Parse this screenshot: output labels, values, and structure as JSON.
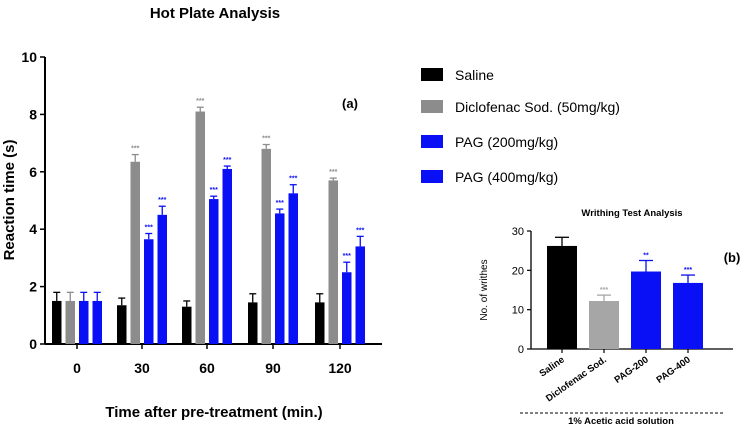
{
  "chart_data": [
    {
      "id": "a",
      "type": "bar",
      "title": "Hot Plate Analysis",
      "panel_label": "(a)",
      "xlabel": "Time after pre-treatment (min.)",
      "ylabel": "Reaction time (s)",
      "ylim": [
        0,
        10
      ],
      "yticks": [
        "0",
        "2",
        "4",
        "6",
        "8",
        "10"
      ],
      "categories": [
        "0",
        "30",
        "60",
        "90",
        "120"
      ],
      "series": [
        {
          "name": "Saline",
          "color": "#000000",
          "values": [
            1.5,
            1.35,
            1.3,
            1.45,
            1.45
          ],
          "errors": [
            0.3,
            0.25,
            0.2,
            0.3,
            0.3
          ],
          "sig": [
            "",
            "",
            "",
            "",
            ""
          ]
        },
        {
          "name": "Diclofenac Sod. (50mg/kg)",
          "color": "#8c8c8c",
          "values": [
            1.5,
            6.35,
            8.1,
            6.8,
            5.7
          ],
          "errors": [
            0.3,
            0.25,
            0.15,
            0.15,
            0.08
          ],
          "sig": [
            "",
            "***",
            "***",
            "***",
            "***"
          ]
        },
        {
          "name": "PAG (200mg/kg)",
          "color": "#0a10f5",
          "values": [
            1.5,
            3.65,
            5.05,
            4.55,
            2.5
          ],
          "errors": [
            0.3,
            0.2,
            0.1,
            0.15,
            0.35
          ],
          "sig": [
            "",
            "***",
            "***",
            "***",
            "***"
          ]
        },
        {
          "name": "PAG (400mg/kg)",
          "color": "#0a10f5",
          "values": [
            1.5,
            4.5,
            6.1,
            5.25,
            3.4
          ],
          "errors": [
            0.3,
            0.3,
            0.1,
            0.3,
            0.35
          ],
          "sig": [
            "",
            "***",
            "***",
            "***",
            "***"
          ]
        }
      ]
    },
    {
      "id": "b",
      "type": "bar",
      "title": "Writhing Test Analysis",
      "panel_label": "(b)",
      "ylabel": "No. of writhes",
      "xlabel": "1% Acetic acid solution",
      "ylim": [
        0,
        30
      ],
      "yticks": [
        "0",
        "10",
        "20",
        "30"
      ],
      "categories": [
        "Saline",
        "Diclofenac Sod.",
        "PAG-200",
        "PAG-400"
      ],
      "values": [
        26.2,
        12.2,
        19.7,
        16.8
      ],
      "errors": [
        2.2,
        1.5,
        2.8,
        2.0
      ],
      "colors": [
        "#000000",
        "#a6a6a6",
        "#0a10f5",
        "#0a10f5"
      ],
      "sig": [
        "",
        "***",
        "**",
        "***"
      ]
    }
  ]
}
